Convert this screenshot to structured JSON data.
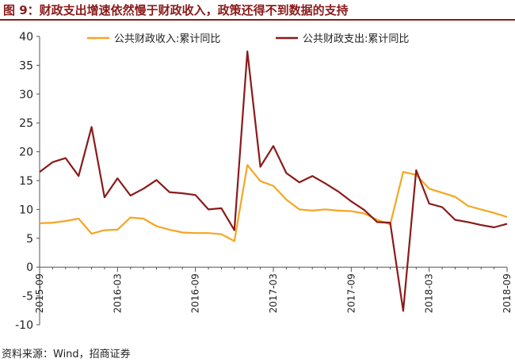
{
  "figure": {
    "title": "图 9：财政支出增速依然慢于财政收入，政策还得不到数据的支持",
    "source": "资料来源：Wind，招商证券"
  },
  "chart_data": {
    "type": "line",
    "x": [
      "2015-09",
      "2015-10",
      "2015-11",
      "2015-12",
      "2016-01",
      "2016-02",
      "2016-03",
      "2016-04",
      "2016-05",
      "2016-06",
      "2016-07",
      "2016-08",
      "2016-09",
      "2016-10",
      "2016-11",
      "2016-12",
      "2017-01",
      "2017-02",
      "2017-03",
      "2017-04",
      "2017-05",
      "2017-06",
      "2017-07",
      "2017-08",
      "2017-09",
      "2017-10",
      "2017-11",
      "2017-12",
      "2018-01",
      "2018-02",
      "2018-03",
      "2018-04",
      "2018-05",
      "2018-06",
      "2018-07",
      "2018-08",
      "2018-09"
    ],
    "x_tick_labels": [
      "2015-09",
      "2016-03",
      "2016-09",
      "2017-03",
      "2017-09",
      "2018-03",
      "2018-09"
    ],
    "ylim": [
      -10,
      40
    ],
    "y_ticks": [
      -10,
      -5,
      0,
      5,
      10,
      15,
      20,
      25,
      30,
      35,
      40
    ],
    "grid": false,
    "legend_position": "top",
    "series": [
      {
        "name": "公共财政收入:累计同比",
        "color": "#F5A623",
        "values": [
          7.6,
          7.7,
          8.0,
          8.4,
          5.8,
          6.4,
          6.5,
          8.6,
          8.4,
          7.1,
          6.5,
          6.0,
          5.9,
          5.9,
          5.7,
          4.5,
          17.7,
          14.9,
          14.1,
          11.7,
          10.0,
          9.8,
          10.0,
          9.8,
          9.7,
          9.3,
          8.2,
          7.4,
          16.5,
          16.0,
          13.6,
          12.9,
          12.2,
          10.6,
          10.0,
          9.4,
          8.7
        ]
      },
      {
        "name": "公共财政支出:累计同比",
        "color": "#8B1A1A",
        "values": [
          16.5,
          18.2,
          18.9,
          15.8,
          24.3,
          12.1,
          15.4,
          12.4,
          13.6,
          15.1,
          13.0,
          12.8,
          12.5,
          10.0,
          10.2,
          6.4,
          37.4,
          17.4,
          21.0,
          16.3,
          14.7,
          15.8,
          14.5,
          13.1,
          11.4,
          9.9,
          7.8,
          7.7,
          -7.6,
          16.8,
          11.0,
          10.4,
          8.2,
          7.8,
          7.3,
          6.9,
          7.5
        ]
      }
    ]
  }
}
